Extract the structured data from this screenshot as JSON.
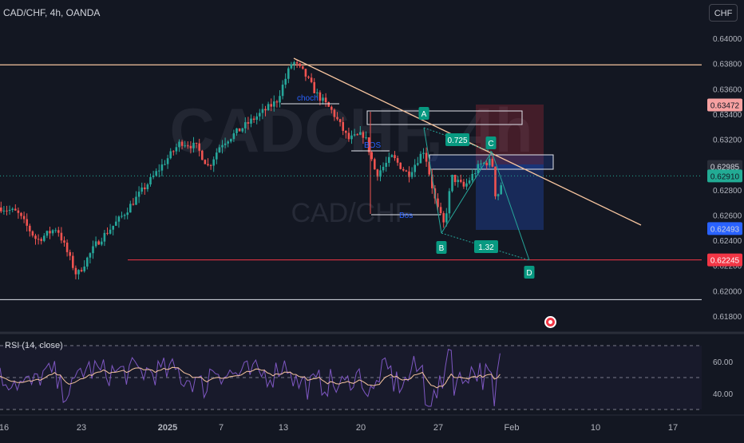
{
  "header": {
    "title": "CAD/CHF, 4h, OANDA",
    "currency_button": "CHF"
  },
  "watermark": {
    "big": "CADCHF, 4h",
    "small": "CAD/CHF"
  },
  "rsi_label": "RSI (14, close)",
  "colors": {
    "background": "#131722",
    "up": "#26a69a",
    "down": "#ef5350",
    "rsi_line": "#7e57c2",
    "rsi_ma": "#f7c59f",
    "trendline": "#f7c59f",
    "support": "#f23645",
    "label_teal": "#089981"
  },
  "chart_data": [
    {
      "type": "candlestick",
      "title": "CAD/CHF, 4h, OANDA",
      "y_ticks": [
        "0.64000",
        "0.63800",
        "0.63600",
        "0.63400",
        "0.63200",
        "0.63000",
        "0.62800",
        "0.62600",
        "0.62400",
        "0.62200",
        "0.62000",
        "0.61800"
      ],
      "x_ticks": [
        "16",
        "23",
        "2025",
        "7",
        "13",
        "20",
        "27",
        "Feb",
        "10",
        "17"
      ],
      "ylim": [
        0.6166,
        0.6418
      ],
      "price_labels": [
        {
          "value": "0.63472",
          "color": "#f7a1a1",
          "text_color": "#131722"
        },
        {
          "value": "0.62985",
          "color": "#2a2e39",
          "text_color": "#d1d4dc"
        },
        {
          "value": "0.62910",
          "color": "#22ab94",
          "text_color": "#131722"
        },
        {
          "value": "0.62493",
          "color": "#2962ff",
          "text_color": "#d1d4dc"
        },
        {
          "value": "0.62245",
          "color": "#f23645",
          "text_color": "#ffffff"
        }
      ],
      "horizontal_levels": [
        0.6379,
        0.62245,
        0.6193
      ],
      "harmonic_pattern": {
        "points": [
          "A",
          "B",
          "C",
          "D"
        ],
        "ratios": [
          "0.725",
          "1.32"
        ]
      },
      "annotations": [
        "choch",
        "BOS",
        "Bos"
      ],
      "series": [
        {
          "name": "price",
          "start": 0.6286,
          "end": 0.6291,
          "high": 0.6387,
          "low": 0.6212
        }
      ]
    },
    {
      "type": "line",
      "title": "RSI (14, close)",
      "y_ticks": [
        "60.00",
        "40.00"
      ],
      "ylim": [
        28,
        72
      ],
      "bands": [
        70,
        50,
        30
      ]
    }
  ]
}
